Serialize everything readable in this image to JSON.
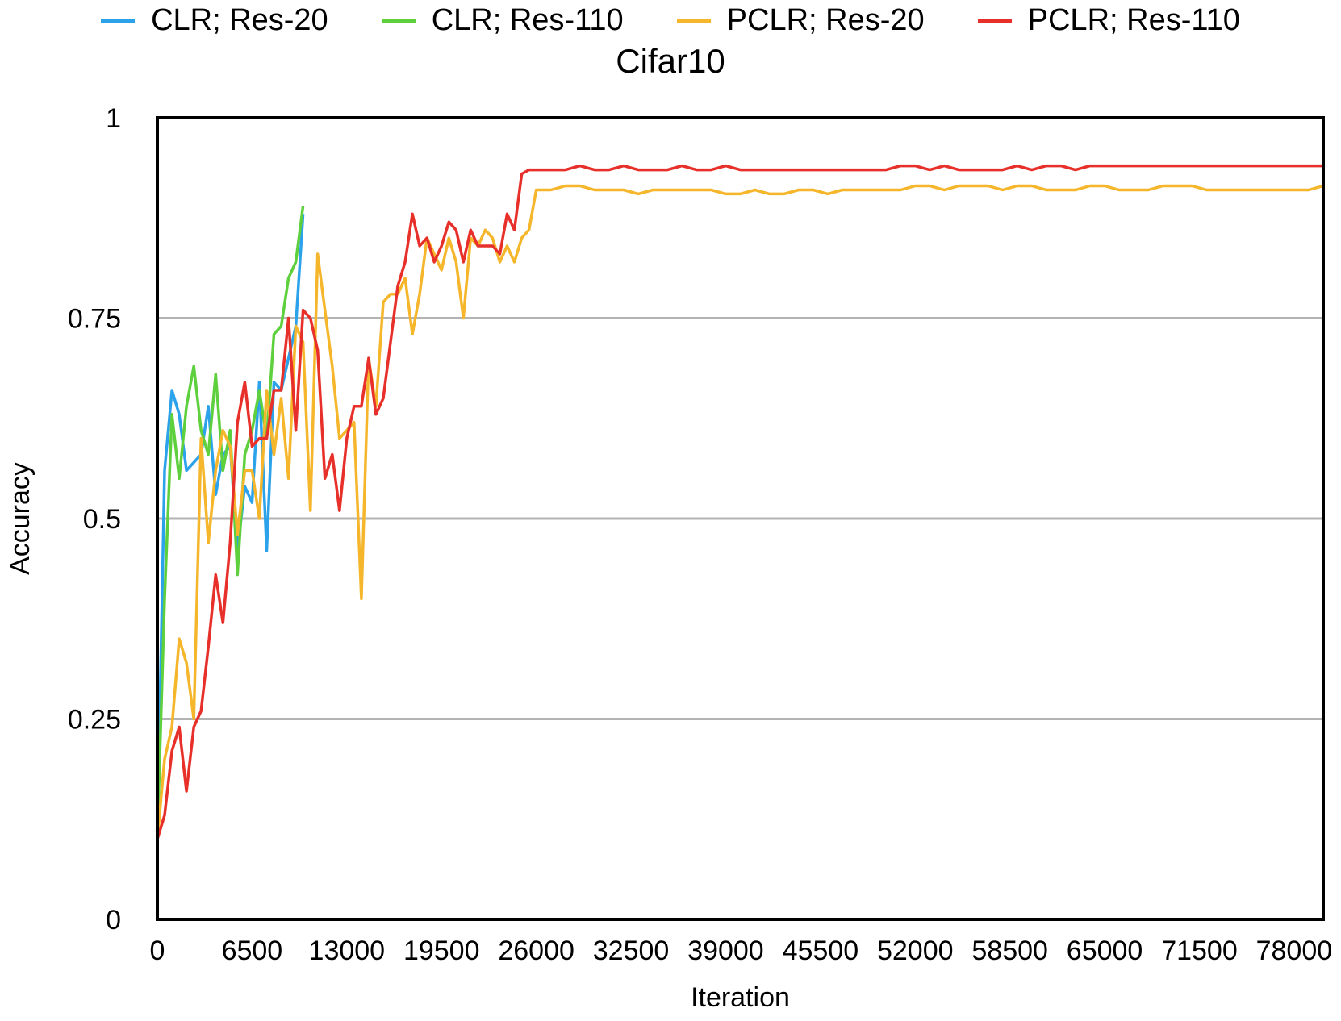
{
  "chart_data": {
    "type": "line",
    "title": "Cifar10",
    "xlabel": "Iteration",
    "ylabel": "Accuracy",
    "xlim": [
      0,
      78000
    ],
    "ylim": [
      0,
      1
    ],
    "xticks": [
      0,
      6500,
      13000,
      19500,
      26000,
      32500,
      39000,
      45500,
      52000,
      58500,
      65000,
      71500,
      78000
    ],
    "yticks": [
      0,
      0.25,
      0.5,
      0.75,
      1
    ],
    "ytick_labels": [
      "0",
      "0.25",
      "0.5",
      "0.75",
      "1"
    ],
    "grid": "horizontal",
    "legend_position": "top",
    "series": [
      {
        "name": "CLR; Res-20",
        "color": "#2ba2ea",
        "x": [
          0,
          500,
          1000,
          1500,
          2000,
          2500,
          3000,
          3500,
          4000,
          4500,
          5000,
          5500,
          6000,
          6500,
          7000,
          7500,
          8000,
          8500,
          9000,
          9500,
          10000
        ],
        "y": [
          0.1,
          0.56,
          0.66,
          0.63,
          0.56,
          0.57,
          0.58,
          0.64,
          0.53,
          0.58,
          0.59,
          0.46,
          0.54,
          0.52,
          0.67,
          0.46,
          0.67,
          0.66,
          0.7,
          0.74,
          0.88
        ]
      },
      {
        "name": "CLR; Res-110",
        "color": "#5fd03d",
        "x": [
          0,
          500,
          1000,
          1500,
          2000,
          2500,
          3000,
          3500,
          4000,
          4500,
          5000,
          5500,
          6000,
          6500,
          7000,
          7500,
          8000,
          8500,
          9000,
          9500,
          10000
        ],
        "y": [
          0.1,
          0.4,
          0.63,
          0.55,
          0.64,
          0.69,
          0.61,
          0.58,
          0.68,
          0.56,
          0.61,
          0.43,
          0.58,
          0.61,
          0.66,
          0.6,
          0.73,
          0.74,
          0.8,
          0.82,
          0.89
        ]
      },
      {
        "name": "PCLR; Res-20",
        "color": "#f5b62b",
        "x": [
          0,
          500,
          1000,
          1500,
          2000,
          2500,
          3000,
          3500,
          4000,
          4500,
          5000,
          5500,
          6000,
          6500,
          7000,
          7500,
          8000,
          8500,
          9000,
          9500,
          10000,
          10500,
          11000,
          11500,
          12000,
          12500,
          13000,
          13500,
          14000,
          14500,
          15000,
          15500,
          16000,
          16500,
          17000,
          17500,
          18000,
          18500,
          19000,
          19500,
          20000,
          20500,
          21000,
          21500,
          22000,
          22500,
          23000,
          23500,
          24000,
          24500,
          25000,
          25500,
          26000,
          27000,
          28000,
          29000,
          30000,
          31000,
          32000,
          33000,
          34000,
          35000,
          36000,
          37000,
          38000,
          39000,
          40000,
          41000,
          42000,
          43000,
          44000,
          45000,
          46000,
          47000,
          48000,
          49000,
          50000,
          51000,
          52000,
          53000,
          54000,
          55000,
          56000,
          57000,
          58000,
          59000,
          60000,
          61000,
          62000,
          63000,
          64000,
          65000,
          66000,
          67000,
          68000,
          69000,
          70000,
          71000,
          72000,
          73000,
          74000,
          75000,
          76000,
          77000,
          78000,
          79000,
          80000
        ],
        "y": [
          0.1,
          0.2,
          0.24,
          0.35,
          0.32,
          0.25,
          0.6,
          0.47,
          0.56,
          0.61,
          0.59,
          0.48,
          0.56,
          0.56,
          0.5,
          0.66,
          0.58,
          0.65,
          0.55,
          0.74,
          0.72,
          0.51,
          0.83,
          0.76,
          0.69,
          0.6,
          0.61,
          0.62,
          0.4,
          0.7,
          0.64,
          0.77,
          0.78,
          0.78,
          0.8,
          0.73,
          0.78,
          0.85,
          0.83,
          0.81,
          0.85,
          0.82,
          0.75,
          0.85,
          0.84,
          0.86,
          0.85,
          0.82,
          0.84,
          0.82,
          0.85,
          0.86,
          0.91,
          0.91,
          0.915,
          0.915,
          0.91,
          0.91,
          0.91,
          0.905,
          0.91,
          0.91,
          0.91,
          0.91,
          0.91,
          0.905,
          0.905,
          0.91,
          0.905,
          0.905,
          0.91,
          0.91,
          0.905,
          0.91,
          0.91,
          0.91,
          0.91,
          0.91,
          0.915,
          0.915,
          0.91,
          0.915,
          0.915,
          0.915,
          0.91,
          0.915,
          0.915,
          0.91,
          0.91,
          0.91,
          0.915,
          0.915,
          0.91,
          0.91,
          0.91,
          0.915,
          0.915,
          0.915,
          0.91,
          0.91,
          0.91,
          0.91,
          0.91,
          0.91,
          0.91,
          0.91,
          0.915
        ]
      },
      {
        "name": "PCLR; Res-110",
        "color": "#e8302a",
        "x": [
          0,
          500,
          1000,
          1500,
          2000,
          2500,
          3000,
          3500,
          4000,
          4500,
          5000,
          5500,
          6000,
          6500,
          7000,
          7500,
          8000,
          8500,
          9000,
          9500,
          10000,
          10500,
          11000,
          11500,
          12000,
          12500,
          13000,
          13500,
          14000,
          14500,
          15000,
          15500,
          16000,
          16500,
          17000,
          17500,
          18000,
          18500,
          19000,
          19500,
          20000,
          20500,
          21000,
          21500,
          22000,
          22500,
          23000,
          23500,
          24000,
          24500,
          25000,
          25500,
          26000,
          27000,
          28000,
          29000,
          30000,
          31000,
          32000,
          33000,
          34000,
          35000,
          36000,
          37000,
          38000,
          39000,
          40000,
          41000,
          42000,
          43000,
          44000,
          45000,
          46000,
          47000,
          48000,
          49000,
          50000,
          51000,
          52000,
          53000,
          54000,
          55000,
          56000,
          57000,
          58000,
          59000,
          60000,
          61000,
          62000,
          63000,
          64000,
          65000,
          66000,
          67000,
          68000,
          69000,
          70000,
          71000,
          72000,
          73000,
          74000,
          75000,
          76000,
          77000,
          78000,
          79000,
          80000
        ],
        "y": [
          0.1,
          0.13,
          0.21,
          0.24,
          0.16,
          0.24,
          0.26,
          0.34,
          0.43,
          0.37,
          0.47,
          0.62,
          0.67,
          0.59,
          0.6,
          0.6,
          0.66,
          0.66,
          0.75,
          0.61,
          0.76,
          0.75,
          0.71,
          0.55,
          0.58,
          0.51,
          0.6,
          0.64,
          0.64,
          0.7,
          0.63,
          0.65,
          0.72,
          0.79,
          0.82,
          0.88,
          0.84,
          0.85,
          0.82,
          0.84,
          0.87,
          0.86,
          0.82,
          0.86,
          0.84,
          0.84,
          0.84,
          0.83,
          0.88,
          0.86,
          0.93,
          0.935,
          0.935,
          0.935,
          0.935,
          0.94,
          0.935,
          0.935,
          0.94,
          0.935,
          0.935,
          0.935,
          0.94,
          0.935,
          0.935,
          0.94,
          0.935,
          0.935,
          0.935,
          0.935,
          0.935,
          0.935,
          0.935,
          0.935,
          0.935,
          0.935,
          0.935,
          0.94,
          0.94,
          0.935,
          0.94,
          0.935,
          0.935,
          0.935,
          0.935,
          0.94,
          0.935,
          0.94,
          0.94,
          0.935,
          0.94,
          0.94,
          0.94,
          0.94,
          0.94,
          0.94,
          0.94,
          0.94,
          0.94,
          0.94,
          0.94,
          0.94,
          0.94,
          0.94,
          0.94,
          0.94,
          0.94
        ]
      }
    ]
  }
}
